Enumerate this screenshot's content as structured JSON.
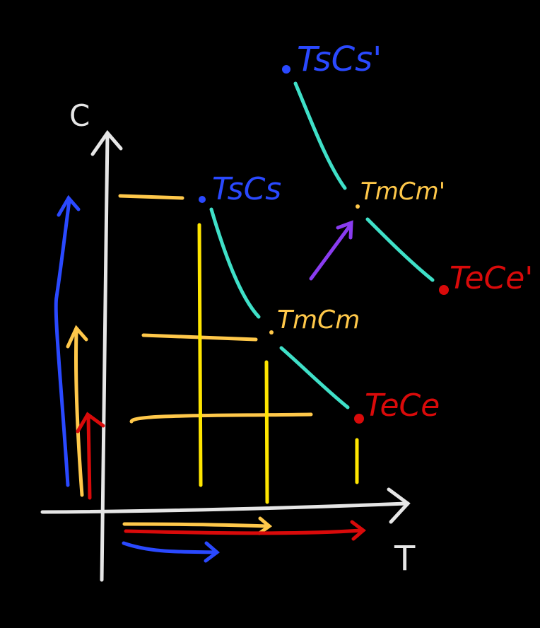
{
  "axes": {
    "x_label": "T",
    "y_label": "C"
  },
  "points": {
    "ts_cs": {
      "label": "TsCs"
    },
    "tm_cm": {
      "label": "TmCm"
    },
    "te_ce": {
      "label": "TeCe"
    },
    "ts_cs_prime": {
      "label": "TsCs'"
    },
    "tm_cm_prime": {
      "label": "TmCm'"
    },
    "te_ce_prime": {
      "label": "TeCe'"
    }
  },
  "colors": {
    "background": "#000000",
    "axis": "#e6e6e6",
    "blue": "#2a49ff",
    "yellow": "#ffc84a",
    "bright_yellow": "#ffe600",
    "red": "#d90a0a",
    "teal": "#3fe0c8",
    "purple": "#8a3cf0"
  }
}
